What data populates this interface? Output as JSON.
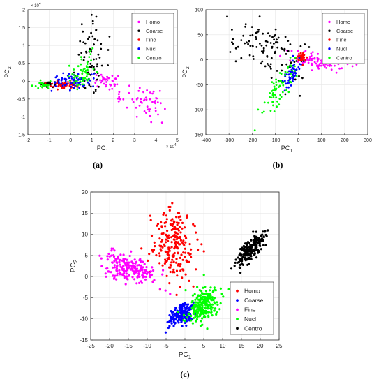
{
  "chart_data": [
    {
      "id": "a",
      "caption": "(a)",
      "type": "scatter",
      "title": "",
      "xlabel": "PC",
      "xlabel_sub": "1",
      "ylabel": "PC",
      "ylabel_sub": "2",
      "xlim": [
        -2,
        5
      ],
      "ylim": [
        -1.5,
        2
      ],
      "xticks": [
        -2,
        -1,
        0,
        1,
        2,
        3,
        4,
        5
      ],
      "yticks": [
        -1.5,
        -1,
        -0.5,
        0,
        0.5,
        1,
        1.5,
        2
      ],
      "x_exponent": "× 10",
      "x_exponent_power": "4",
      "y_exponent": "× 10",
      "y_exponent_power": "4",
      "grid": true,
      "legend_position": "top-right",
      "series": [
        {
          "name": "Homo",
          "color": "#ff00ff",
          "clusters": [
            {
              "cx": 1.7,
              "cy": 0.0,
              "sx": 0.3,
              "sy": 0.1,
              "rho": -0.3,
              "n": 40
            },
            {
              "cx": 3.3,
              "cy": -0.55,
              "sx": 0.6,
              "sy": 0.25,
              "rho": -0.5,
              "n": 55
            }
          ]
        },
        {
          "name": "Coarse",
          "color": "#000000",
          "clusters": [
            {
              "cx": 1.0,
              "cy": 0.7,
              "sx": 0.4,
              "sy": 0.5,
              "rho": 0.3,
              "n": 70
            },
            {
              "cx": -1.0,
              "cy": -0.1,
              "sx": 0.2,
              "sy": 0.05,
              "rho": 0,
              "n": 20
            }
          ]
        },
        {
          "name": "Fine",
          "color": "#ff0000",
          "clusters": [
            {
              "cx": -0.3,
              "cy": -0.1,
              "sx": 0.35,
              "sy": 0.05,
              "rho": 0,
              "n": 60
            }
          ]
        },
        {
          "name": "Nucl",
          "color": "#0000ff",
          "clusters": [
            {
              "cx": 0.1,
              "cy": 0.0,
              "sx": 0.45,
              "sy": 0.12,
              "rho": 0.3,
              "n": 70
            }
          ]
        },
        {
          "name": "Centro",
          "color": "#00ff00",
          "clusters": [
            {
              "cx": 0.6,
              "cy": 0.25,
              "sx": 0.35,
              "sy": 0.25,
              "rho": 0.6,
              "n": 60
            },
            {
              "cx": -1.3,
              "cy": -0.1,
              "sx": 0.2,
              "sy": 0.05,
              "rho": 0,
              "n": 20
            }
          ]
        }
      ]
    },
    {
      "id": "b",
      "caption": "(b)",
      "type": "scatter",
      "title": "",
      "xlabel": "PC",
      "xlabel_sub": "1",
      "ylabel": "PC",
      "ylabel_sub": "2",
      "xlim": [
        -400,
        300
      ],
      "ylim": [
        -150,
        100
      ],
      "xticks": [
        -400,
        -300,
        -200,
        -100,
        0,
        100,
        200,
        300
      ],
      "yticks": [
        -150,
        -100,
        -50,
        0,
        50,
        100
      ],
      "grid": true,
      "legend_position": "top-right",
      "series": [
        {
          "name": "Homo",
          "color": "#ff00ff",
          "clusters": [
            {
              "cx": 90,
              "cy": -5,
              "sx": 55,
              "sy": 10,
              "rho": -0.6,
              "n": 80
            }
          ]
        },
        {
          "name": "Coarse",
          "color": "#000000",
          "clusters": [
            {
              "cx": -130,
              "cy": 20,
              "sx": 75,
              "sy": 28,
              "rho": -0.4,
              "n": 110
            }
          ]
        },
        {
          "name": "Fine",
          "color": "#ff0000",
          "clusters": [
            {
              "cx": 15,
              "cy": 5,
              "sx": 10,
              "sy": 5,
              "rho": 0,
              "n": 40
            }
          ]
        },
        {
          "name": "Nucl",
          "color": "#0000ff",
          "clusters": [
            {
              "cx": -30,
              "cy": -30,
              "sx": 20,
              "sy": 15,
              "rho": 0.6,
              "n": 60
            }
          ]
        },
        {
          "name": "Centro",
          "color": "#00ff00",
          "clusters": [
            {
              "cx": -80,
              "cy": -60,
              "sx": 35,
              "sy": 25,
              "rho": 0.7,
              "n": 70
            }
          ]
        }
      ]
    },
    {
      "id": "c",
      "caption": "(c)",
      "type": "scatter",
      "title": "",
      "xlabel": "PC",
      "xlabel_sub": "1",
      "ylabel": "PC",
      "ylabel_sub": "2",
      "xlim": [
        -25,
        25
      ],
      "ylim": [
        -15,
        20
      ],
      "xticks": [
        -25,
        -20,
        -15,
        -10,
        -5,
        0,
        5,
        10,
        15,
        20,
        25
      ],
      "yticks": [
        -15,
        -10,
        -5,
        0,
        5,
        10,
        15,
        20
      ],
      "grid": true,
      "legend_position": "bottom-right",
      "series": [
        {
          "name": "Homo",
          "color": "#ff0000",
          "clusters": [
            {
              "cx": -3,
              "cy": 7,
              "sx": 3,
              "sy": 4,
              "rho": -0.1,
              "n": 220
            }
          ]
        },
        {
          "name": "Coarse",
          "color": "#0000ff",
          "clusters": [
            {
              "cx": -1,
              "cy": -9,
              "sx": 1.8,
              "sy": 1.5,
              "rho": 0.5,
              "n": 160
            }
          ]
        },
        {
          "name": "Fine",
          "color": "#ff00ff",
          "clusters": [
            {
              "cx": -15,
              "cy": 2,
              "sx": 3.5,
              "sy": 1.8,
              "rho": -0.5,
              "n": 200
            }
          ]
        },
        {
          "name": "Nucl",
          "color": "#00ff00",
          "clusters": [
            {
              "cx": 5,
              "cy": -6.5,
              "sx": 2.2,
              "sy": 2.0,
              "rho": 0.3,
              "n": 220
            }
          ]
        },
        {
          "name": "Centro",
          "color": "#000000",
          "clusters": [
            {
              "cx": 17.5,
              "cy": 6.5,
              "sx": 2.0,
              "sy": 2.0,
              "rho": 0.75,
              "n": 200
            }
          ]
        }
      ]
    }
  ]
}
